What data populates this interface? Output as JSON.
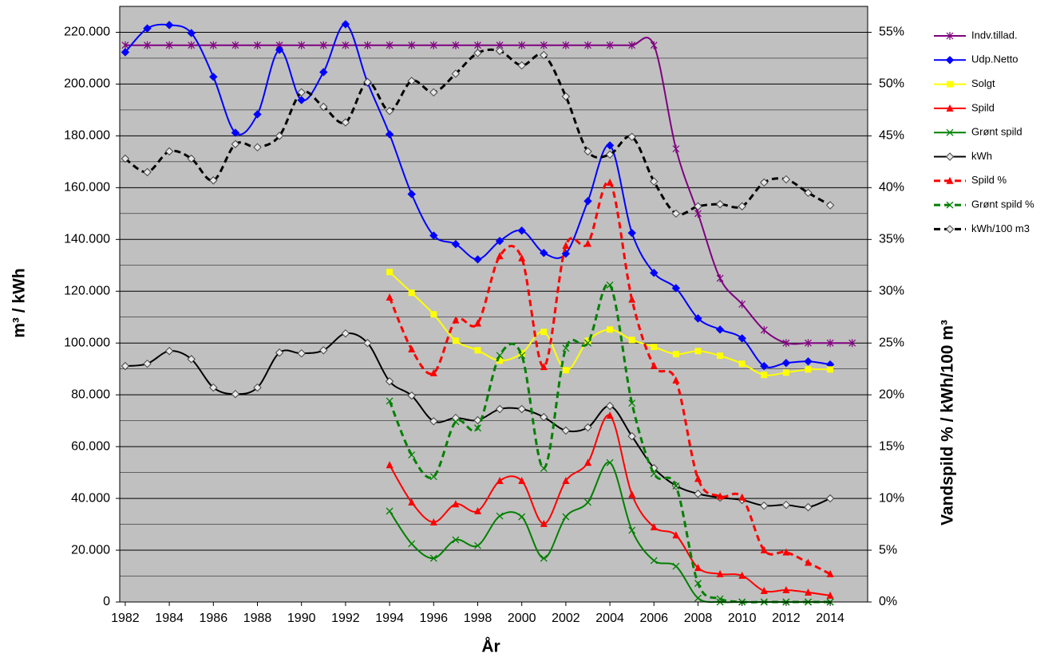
{
  "chart_data": {
    "type": "line",
    "x_label": "År",
    "y_label": "m³ / kWh",
    "y2_label": "Vandspild % / kWh/100 m³",
    "x": [
      1982,
      1983,
      1984,
      1985,
      1986,
      1987,
      1988,
      1989,
      1990,
      1991,
      1992,
      1993,
      1994,
      1995,
      1996,
      1997,
      1998,
      1999,
      2000,
      2001,
      2002,
      2003,
      2004,
      2005,
      2006,
      2007,
      2008,
      2009,
      2010,
      2011,
      2012,
      2013,
      2014,
      2015
    ],
    "xlim": [
      1981.75,
      2015.7
    ],
    "xticks": [
      1982,
      1984,
      1986,
      1988,
      1990,
      1992,
      1994,
      1996,
      1998,
      2000,
      2002,
      2004,
      2006,
      2008,
      2010,
      2012,
      2014
    ],
    "ylim": [
      0,
      230000
    ],
    "yticks": [
      0,
      {
        "value": 20000,
        "label": "20.000"
      },
      {
        "value": 40000,
        "label": "40.000"
      },
      {
        "value": 60000,
        "label": "60.000"
      },
      {
        "value": 80000,
        "label": "80.000"
      },
      {
        "value": 100000,
        "label": "100.000"
      },
      {
        "value": 120000,
        "label": "120.000"
      },
      {
        "value": 140000,
        "label": "140.000"
      },
      {
        "value": 160000,
        "label": "160.000"
      },
      {
        "value": 180000,
        "label": "180.000"
      },
      {
        "value": 200000,
        "label": "200.000"
      },
      {
        "value": 220000,
        "label": "220.000"
      }
    ],
    "y2lim": [
      0,
      57.5
    ],
    "y2ticks": [
      {
        "value": 0,
        "label": "0%"
      },
      {
        "value": 5,
        "label": "5%"
      },
      {
        "value": 10,
        "label": "10%"
      },
      {
        "value": 15,
        "label": "15%"
      },
      {
        "value": 20,
        "label": "20%"
      },
      {
        "value": 25,
        "label": "25%"
      },
      {
        "value": 30,
        "label": "30%"
      },
      {
        "value": 35,
        "label": "35%"
      },
      {
        "value": 40,
        "label": "40%"
      },
      {
        "value": 45,
        "label": "45%"
      },
      {
        "value": 50,
        "label": "50%"
      },
      {
        "value": 55,
        "label": "55%"
      }
    ],
    "grid": true,
    "minor_grid": true,
    "legend": "right",
    "smooth": true,
    "series": [
      {
        "name": "Indv.tillad.",
        "color": "#800080",
        "marker": "star",
        "dashed": false,
        "values": [
          215000,
          215000,
          215000,
          215000,
          215000,
          215000,
          215000,
          215000,
          215000,
          215000,
          215000,
          215000,
          215000,
          215000,
          215000,
          215000,
          215000,
          215000,
          215000,
          215000,
          215000,
          215000,
          215000,
          215000,
          215000,
          175000,
          150000,
          125000,
          115000,
          105000,
          100000,
          100000,
          100000,
          100000
        ]
      },
      {
        "name": "Udp.Netto",
        "color": "#0000ff",
        "marker": "diamond",
        "dashed": false,
        "values": [
          212300,
          221500,
          222800,
          219700,
          202800,
          181200,
          188300,
          213200,
          193800,
          204600,
          223100,
          200600,
          180600,
          157500,
          141500,
          138200,
          132300,
          139400,
          143400,
          134800,
          134500,
          154800,
          176300,
          142500,
          127100,
          121200,
          109500,
          105200,
          101800,
          91100,
          92300,
          92900,
          91700,
          null
        ]
      },
      {
        "name": "Solgt",
        "color": "#ffff00",
        "marker": "square",
        "dashed": false,
        "values": [
          null,
          null,
          null,
          null,
          null,
          null,
          null,
          null,
          null,
          null,
          null,
          null,
          127400,
          119400,
          111100,
          100900,
          97200,
          93200,
          96000,
          104300,
          89500,
          100900,
          105200,
          101200,
          98500,
          95700,
          96900,
          95100,
          92000,
          87700,
          88600,
          89800,
          89800,
          null
        ]
      },
      {
        "name": "Spild",
        "color": "#ff0000",
        "marker": "triangle",
        "dashed": false,
        "values": [
          null,
          null,
          null,
          null,
          null,
          null,
          null,
          null,
          null,
          null,
          null,
          null,
          52900,
          38500,
          30800,
          37800,
          35100,
          46800,
          46800,
          30200,
          46800,
          53800,
          72000,
          41500,
          28900,
          25800,
          13200,
          10800,
          10200,
          4300,
          4600,
          3700,
          2500,
          null
        ]
      },
      {
        "name": "Grønt spild",
        "color": "#008000",
        "marker": "x",
        "dashed": false,
        "values": [
          null,
          null,
          null,
          null,
          null,
          null,
          null,
          null,
          null,
          null,
          null,
          null,
          35100,
          22500,
          16900,
          24000,
          21800,
          33200,
          32900,
          16900,
          32900,
          38500,
          53800,
          27700,
          16000,
          13800,
          1500,
          0,
          0,
          0,
          0,
          0,
          0,
          null
        ]
      },
      {
        "name": "kWh",
        "color": "#000000",
        "marker": "diamond-open",
        "dashed": false,
        "values": [
          91100,
          92000,
          96900,
          93800,
          82800,
          80300,
          82800,
          96300,
          96000,
          97200,
          103700,
          100000,
          85200,
          79700,
          69800,
          71100,
          70200,
          74500,
          74500,
          71400,
          66200,
          67400,
          75700,
          64000,
          51700,
          44900,
          41800,
          40300,
          39400,
          37200,
          37500,
          36600,
          40000,
          null
        ]
      },
      {
        "name": "Spild %",
        "color": "#ff0000",
        "marker": "triangle",
        "dashed": true,
        "axis": "y2",
        "values": [
          null,
          null,
          null,
          null,
          null,
          null,
          null,
          null,
          null,
          null,
          null,
          null,
          29.4,
          24.4,
          22.1,
          27.2,
          26.9,
          33.4,
          33.2,
          22.7,
          34.4,
          34.6,
          40.5,
          29.2,
          22.8,
          21.4,
          11.9,
          10.2,
          10.1,
          5.0,
          4.8,
          3.8,
          2.7,
          null
        ]
      },
      {
        "name": "Grønt spild %",
        "color": "#008000",
        "marker": "x",
        "dashed": true,
        "axis": "y2",
        "values": [
          null,
          null,
          null,
          null,
          null,
          null,
          null,
          null,
          null,
          null,
          null,
          null,
          19.4,
          14.2,
          12.1,
          17.4,
          16.8,
          23.8,
          23.8,
          12.9,
          24.5,
          25.0,
          30.6,
          19.2,
          12.4,
          11.2,
          1.8,
          0.3,
          0,
          0,
          0,
          0,
          0,
          null
        ]
      },
      {
        "name": "kWh/100 m3",
        "color": "#000000",
        "marker": "diamond-open",
        "dashed": true,
        "axis": "y2",
        "values": [
          42.8,
          41.5,
          43.5,
          42.8,
          40.7,
          44.2,
          43.9,
          45.0,
          49.2,
          47.8,
          46.3,
          50.2,
          47.4,
          50.3,
          49.2,
          51.0,
          53.0,
          53.2,
          51.8,
          52.8,
          48.8,
          43.5,
          43.2,
          44.9,
          40.6,
          37.5,
          38.2,
          38.4,
          38.2,
          40.5,
          40.8,
          39.5,
          38.3,
          null
        ]
      }
    ]
  }
}
